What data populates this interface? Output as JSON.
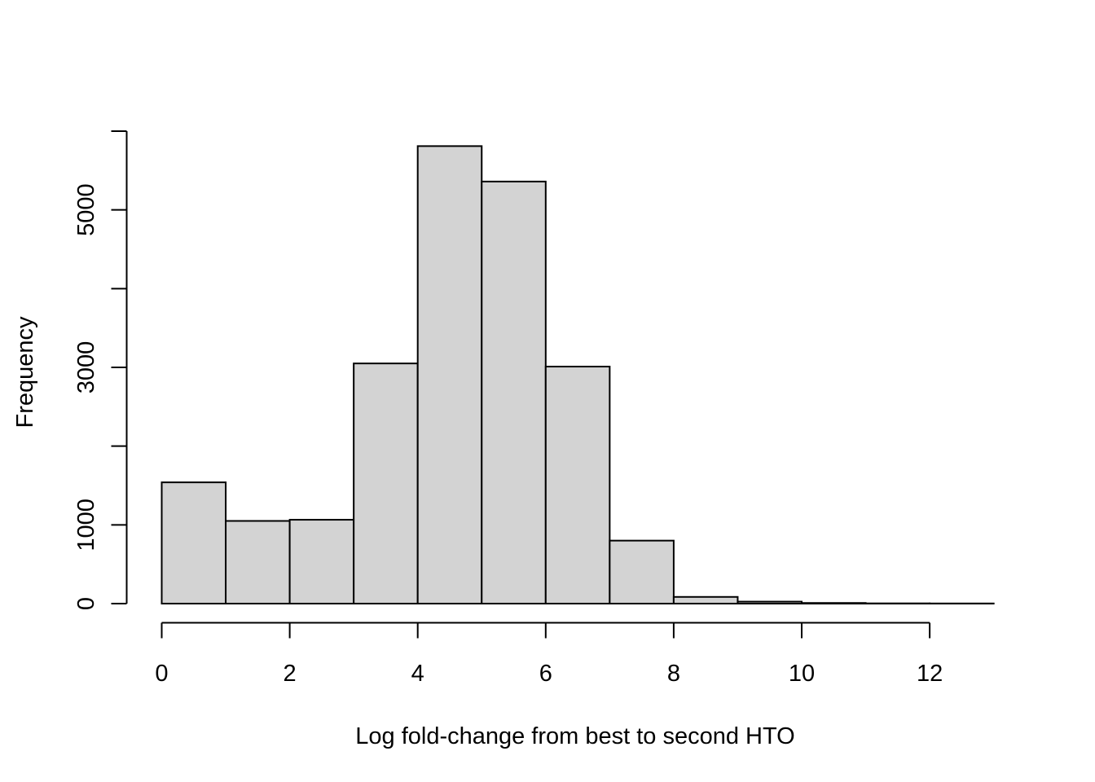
{
  "figure": {
    "background": "#FFFFFF",
    "bar_fill": "#D3D3D3",
    "bar_border": "#000000",
    "axis_color": "#000000",
    "text_color": "#000000"
  },
  "chart_data": {
    "type": "bar",
    "subtype": "histogram",
    "title": "",
    "xlabel": "Log fold-change from best to second HTO",
    "ylabel": "Frequency",
    "xlim": [
      0,
      13
    ],
    "ylim": [
      0,
      6000
    ],
    "grid": false,
    "legend": null,
    "bin_edges": [
      0,
      1,
      2,
      3,
      4,
      5,
      6,
      7,
      8,
      9,
      10,
      11,
      12,
      13
    ],
    "counts": [
      1540,
      1050,
      1065,
      3050,
      5810,
      5360,
      3010,
      800,
      85,
      25,
      8,
      3,
      2
    ],
    "x_ticks": [
      0,
      2,
      4,
      6,
      8,
      10,
      12
    ],
    "x_tick_labels": [
      "0",
      "2",
      "4",
      "6",
      "8",
      "10",
      "12"
    ],
    "y_ticks": [
      0,
      1000,
      2000,
      3000,
      4000,
      5000,
      6000
    ],
    "y_tick_labels": [
      "0",
      "1000",
      "",
      "3000",
      "",
      "5000",
      ""
    ]
  }
}
